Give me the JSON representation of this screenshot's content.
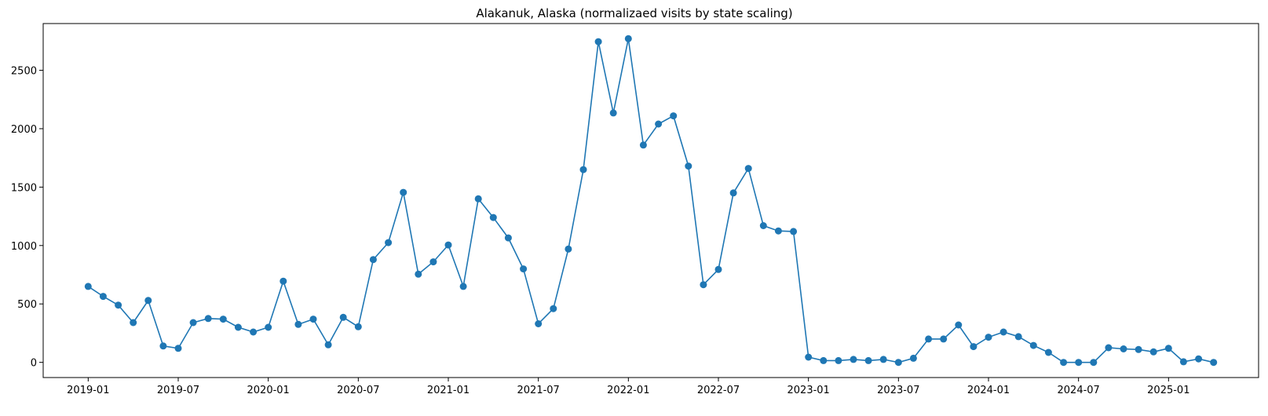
{
  "chart_data": {
    "type": "line",
    "title": "Alakanuk, Alaska (normalizaed visits by state scaling)",
    "xlabel": "",
    "ylabel": "",
    "x_tick_labels": [
      "2019-01",
      "2019-07",
      "2020-01",
      "2020-07",
      "2021-01",
      "2021-07",
      "2022-01",
      "2022-07",
      "2023-01",
      "2023-07",
      "2024-01",
      "2024-07",
      "2025-01"
    ],
    "y_ticks": [
      0,
      500,
      1000,
      1500,
      2000,
      2500
    ],
    "ylim": [
      -130,
      2900
    ],
    "xlim": [
      "2018-10",
      "2025-07"
    ],
    "grid": false,
    "marker": "circle",
    "color": "#1f77b4",
    "series": [
      {
        "x": [
          "2019-01",
          "2019-02",
          "2019-03",
          "2019-04",
          "2019-05",
          "2019-06",
          "2019-07",
          "2019-08",
          "2019-09",
          "2019-10",
          "2019-11",
          "2019-12",
          "2020-01",
          "2020-02",
          "2020-03",
          "2020-04",
          "2020-05",
          "2020-06",
          "2020-07",
          "2020-08",
          "2020-09",
          "2020-10",
          "2020-11",
          "2020-12",
          "2021-01",
          "2021-02",
          "2021-03",
          "2021-04",
          "2021-05",
          "2021-06",
          "2021-07",
          "2021-08",
          "2021-09",
          "2021-10",
          "2021-11",
          "2021-12",
          "2022-01",
          "2022-02",
          "2022-03",
          "2022-04",
          "2022-05",
          "2022-06",
          "2022-07",
          "2022-08",
          "2022-09",
          "2022-10",
          "2022-11",
          "2022-12",
          "2023-01",
          "2023-02",
          "2023-03",
          "2023-04",
          "2023-05",
          "2023-06",
          "2023-07",
          "2023-08",
          "2023-09",
          "2023-10",
          "2023-11",
          "2023-12",
          "2024-01",
          "2024-02",
          "2024-03",
          "2024-04",
          "2024-05",
          "2024-06",
          "2024-07",
          "2024-08",
          "2024-09",
          "2024-10",
          "2024-11",
          "2024-12",
          "2025-01",
          "2025-02",
          "2025-03",
          "2025-04"
        ],
        "values": [
          650,
          565,
          490,
          340,
          530,
          140,
          120,
          340,
          375,
          370,
          300,
          260,
          300,
          695,
          325,
          370,
          150,
          385,
          305,
          880,
          1025,
          1455,
          755,
          860,
          1005,
          650,
          1400,
          1240,
          1065,
          800,
          330,
          460,
          970,
          1650,
          2745,
          2135,
          2770,
          1860,
          2040,
          2110,
          1680,
          665,
          795,
          1450,
          1660,
          1170,
          1125,
          1120,
          45,
          15,
          15,
          25,
          15,
          25,
          0,
          35,
          200,
          200,
          320,
          135,
          215,
          260,
          220,
          145,
          85,
          0,
          0,
          0,
          125,
          115,
          110,
          90,
          120,
          5,
          30,
          0
        ]
      }
    ]
  }
}
